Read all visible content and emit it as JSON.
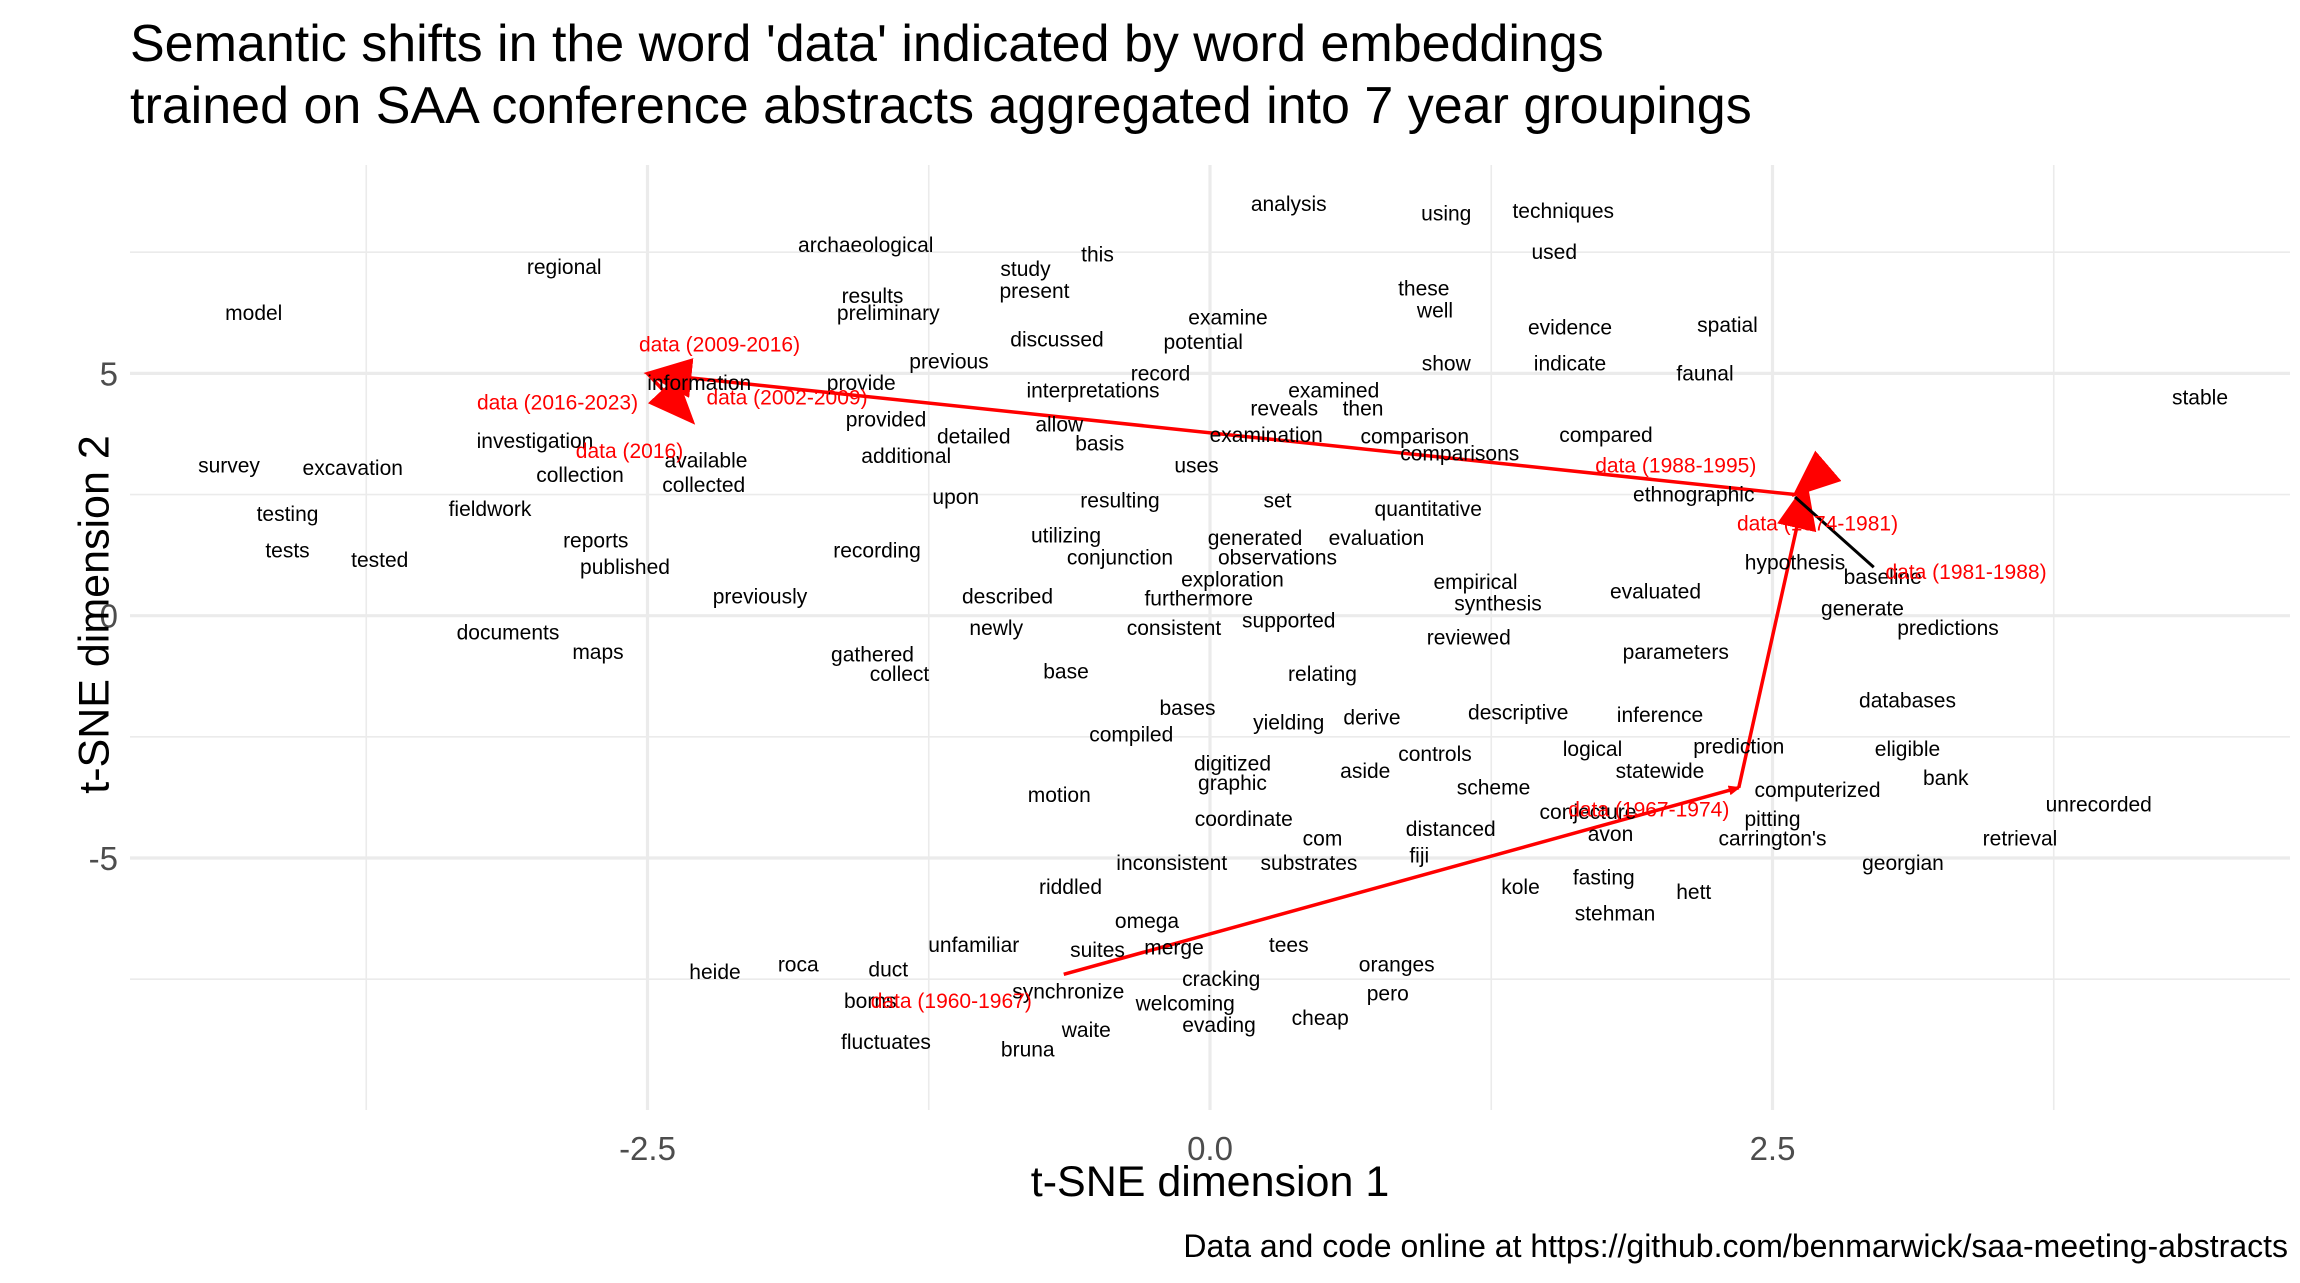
{
  "chart_data": {
    "type": "scatter",
    "title": "Semantic shifts in the word 'data' indicated by word embeddings",
    "subtitle": "trained on SAA conference abstracts aggregated into 7 year groupings",
    "xlabel": "t-SNE dimension 1",
    "ylabel": "t-SNE dimension 2",
    "caption": "Data and code online at https://github.com/benmarwick/saa-meeting-abstracts",
    "xlim": [
      -4.8,
      4.8
    ],
    "ylim": [
      -10.2,
      9.3
    ],
    "xticks": [
      -2.5,
      0.0,
      2.5
    ],
    "xtick_labels": [
      "-2.5",
      "0.0",
      "2.5"
    ],
    "yticks": [
      -5,
      0,
      5
    ],
    "ytick_labels": [
      "-5",
      "0",
      "5"
    ],
    "grid": true,
    "colors": {
      "words": "#000000",
      "data_points": "#ff0000",
      "arrows": "#ff0000",
      "short_arrow": "#000000",
      "grid": "#ebebeb"
    },
    "words": [
      {
        "label": "analysis",
        "x": 0.35,
        "y": 8.5
      },
      {
        "label": "using",
        "x": 1.05,
        "y": 8.3
      },
      {
        "label": "techniques",
        "x": 1.57,
        "y": 8.35
      },
      {
        "label": "archaeological",
        "x": -1.53,
        "y": 7.65
      },
      {
        "label": "this",
        "x": -0.5,
        "y": 7.45
      },
      {
        "label": "used",
        "x": 1.53,
        "y": 7.5
      },
      {
        "label": "regional",
        "x": -2.87,
        "y": 7.2
      },
      {
        "label": "study",
        "x": -0.82,
        "y": 7.15
      },
      {
        "label": "present",
        "x": -0.78,
        "y": 6.7
      },
      {
        "label": "these",
        "x": 0.95,
        "y": 6.75
      },
      {
        "label": "results",
        "x": -1.5,
        "y": 6.6
      },
      {
        "label": "well",
        "x": 1.0,
        "y": 6.3
      },
      {
        "label": "model",
        "x": -4.25,
        "y": 6.25
      },
      {
        "label": "preliminary",
        "x": -1.43,
        "y": 6.25
      },
      {
        "label": "examine",
        "x": 0.08,
        "y": 6.15
      },
      {
        "label": "evidence",
        "x": 1.6,
        "y": 5.95
      },
      {
        "label": "spatial",
        "x": 2.3,
        "y": 6.0
      },
      {
        "label": "discussed",
        "x": -0.68,
        "y": 5.7
      },
      {
        "label": "potential",
        "x": -0.03,
        "y": 5.65
      },
      {
        "label": "previous",
        "x": -1.16,
        "y": 5.25
      },
      {
        "label": "show",
        "x": 1.05,
        "y": 5.2
      },
      {
        "label": "indicate",
        "x": 1.6,
        "y": 5.2
      },
      {
        "label": "provide",
        "x": -1.55,
        "y": 4.8
      },
      {
        "label": "record",
        "x": -0.22,
        "y": 5.0
      },
      {
        "label": "faunal",
        "x": 2.2,
        "y": 5.0
      },
      {
        "label": "interpretations",
        "x": -0.52,
        "y": 4.65
      },
      {
        "label": "examined",
        "x": 0.55,
        "y": 4.65
      },
      {
        "label": "stable",
        "x": 4.4,
        "y": 4.5
      },
      {
        "label": "information",
        "x": -2.27,
        "y": 4.8
      },
      {
        "label": "reveals",
        "x": 0.33,
        "y": 4.28
      },
      {
        "label": "then",
        "x": 0.68,
        "y": 4.28
      },
      {
        "label": "provided",
        "x": -1.44,
        "y": 4.05
      },
      {
        "label": "allow",
        "x": -0.67,
        "y": 3.95
      },
      {
        "label": "detailed",
        "x": -1.05,
        "y": 3.7
      },
      {
        "label": "examination",
        "x": 0.25,
        "y": 3.73
      },
      {
        "label": "comparison",
        "x": 0.91,
        "y": 3.7
      },
      {
        "label": "compared",
        "x": 1.76,
        "y": 3.73
      },
      {
        "label": "basis",
        "x": -0.49,
        "y": 3.55
      },
      {
        "label": "comparisons",
        "x": 1.11,
        "y": 3.35
      },
      {
        "label": "investigation",
        "x": -3.0,
        "y": 3.6
      },
      {
        "label": "available",
        "x": -2.24,
        "y": 3.2
      },
      {
        "label": "additional",
        "x": -1.35,
        "y": 3.3
      },
      {
        "label": "uses",
        "x": -0.06,
        "y": 3.1
      },
      {
        "label": "survey",
        "x": -4.36,
        "y": 3.1
      },
      {
        "label": "excavation",
        "x": -3.81,
        "y": 3.05
      },
      {
        "label": "collection",
        "x": -2.8,
        "y": 2.9
      },
      {
        "label": "collected",
        "x": -2.25,
        "y": 2.7
      },
      {
        "label": "upon",
        "x": -1.13,
        "y": 2.45
      },
      {
        "label": "resulting",
        "x": -0.4,
        "y": 2.38
      },
      {
        "label": "set",
        "x": 0.3,
        "y": 2.38
      },
      {
        "label": "ethnographic",
        "x": 2.15,
        "y": 2.5
      },
      {
        "label": "quantitative",
        "x": 0.97,
        "y": 2.2
      },
      {
        "label": "fieldwork",
        "x": -3.2,
        "y": 2.2
      },
      {
        "label": "testing",
        "x": -4.1,
        "y": 2.1
      },
      {
        "label": "utilizing",
        "x": -0.64,
        "y": 1.65
      },
      {
        "label": "generated",
        "x": 0.2,
        "y": 1.6
      },
      {
        "label": "evaluation",
        "x": 0.74,
        "y": 1.6
      },
      {
        "label": "reports",
        "x": -2.73,
        "y": 1.55
      },
      {
        "label": "recording",
        "x": -1.48,
        "y": 1.35
      },
      {
        "label": "tests",
        "x": -4.1,
        "y": 1.35
      },
      {
        "label": "conjunction",
        "x": -0.4,
        "y": 1.2
      },
      {
        "label": "observations",
        "x": 0.3,
        "y": 1.2
      },
      {
        "label": "tested",
        "x": -3.69,
        "y": 1.15
      },
      {
        "label": "published",
        "x": -2.6,
        "y": 1.0
      },
      {
        "label": "hypothesis",
        "x": 2.6,
        "y": 1.1
      },
      {
        "label": "baseline",
        "x": 2.99,
        "y": 0.8
      },
      {
        "label": "exploration",
        "x": 0.1,
        "y": 0.75
      },
      {
        "label": "empirical",
        "x": 1.18,
        "y": 0.7
      },
      {
        "label": "evaluated",
        "x": 1.98,
        "y": 0.5
      },
      {
        "label": "described",
        "x": -0.9,
        "y": 0.4
      },
      {
        "label": "furthermore",
        "x": -0.05,
        "y": 0.35
      },
      {
        "label": "previously",
        "x": -2.0,
        "y": 0.4
      },
      {
        "label": "synthesis",
        "x": 1.28,
        "y": 0.25
      },
      {
        "label": "generate",
        "x": 2.9,
        "y": 0.15
      },
      {
        "label": "supported",
        "x": 0.35,
        "y": -0.1
      },
      {
        "label": "consistent",
        "x": -0.16,
        "y": -0.25
      },
      {
        "label": "newly",
        "x": -0.95,
        "y": -0.25
      },
      {
        "label": "predictions",
        "x": 3.28,
        "y": -0.25
      },
      {
        "label": "documents",
        "x": -3.12,
        "y": -0.35
      },
      {
        "label": "reviewed",
        "x": 1.15,
        "y": -0.45
      },
      {
        "label": "maps",
        "x": -2.72,
        "y": -0.75
      },
      {
        "label": "parameters",
        "x": 2.07,
        "y": -0.75
      },
      {
        "label": "gathered",
        "x": -1.5,
        "y": -0.8
      },
      {
        "label": "collect",
        "x": -1.38,
        "y": -1.2
      },
      {
        "label": "base",
        "x": -0.64,
        "y": -1.15
      },
      {
        "label": "relating",
        "x": 0.5,
        "y": -1.2
      },
      {
        "label": "databases",
        "x": 3.1,
        "y": -1.75
      },
      {
        "label": "bases",
        "x": -0.1,
        "y": -1.9
      },
      {
        "label": "descriptive",
        "x": 1.37,
        "y": -2.0
      },
      {
        "label": "inference",
        "x": 2.0,
        "y": -2.05
      },
      {
        "label": "derive",
        "x": 0.72,
        "y": -2.1
      },
      {
        "label": "yielding",
        "x": 0.35,
        "y": -2.2
      },
      {
        "label": "compiled",
        "x": -0.35,
        "y": -2.45
      },
      {
        "label": "logical",
        "x": 1.7,
        "y": -2.75
      },
      {
        "label": "prediction",
        "x": 2.35,
        "y": -2.7
      },
      {
        "label": "eligible",
        "x": 3.1,
        "y": -2.75
      },
      {
        "label": "controls",
        "x": 1.0,
        "y": -2.85
      },
      {
        "label": "digitized",
        "x": 0.1,
        "y": -3.05
      },
      {
        "label": "statewide",
        "x": 2.0,
        "y": -3.2
      },
      {
        "label": "aside",
        "x": 0.69,
        "y": -3.2
      },
      {
        "label": "bank",
        "x": 3.27,
        "y": -3.35
      },
      {
        "label": "graphic",
        "x": 0.1,
        "y": -3.45
      },
      {
        "label": "scheme",
        "x": 1.26,
        "y": -3.55
      },
      {
        "label": "computerized",
        "x": 2.7,
        "y": -3.6
      },
      {
        "label": "motion",
        "x": -0.67,
        "y": -3.7
      },
      {
        "label": "conjecture",
        "x": 1.68,
        "y": -4.05
      },
      {
        "label": "unrecorded",
        "x": 3.95,
        "y": -3.9
      },
      {
        "label": "coordinate",
        "x": 0.15,
        "y": -4.2
      },
      {
        "label": "pitting",
        "x": 2.5,
        "y": -4.2
      },
      {
        "label": "distanced",
        "x": 1.07,
        "y": -4.4
      },
      {
        "label": "avon",
        "x": 1.78,
        "y": -4.5
      },
      {
        "label": "carrington's",
        "x": 2.5,
        "y": -4.6
      },
      {
        "label": "com",
        "x": 0.5,
        "y": -4.6
      },
      {
        "label": "retrieval",
        "x": 3.6,
        "y": -4.6
      },
      {
        "label": "fiji",
        "x": 0.93,
        "y": -4.95
      },
      {
        "label": "substrates",
        "x": 0.44,
        "y": -5.1
      },
      {
        "label": "inconsistent",
        "x": -0.17,
        "y": -5.1
      },
      {
        "label": "georgian",
        "x": 3.08,
        "y": -5.1
      },
      {
        "label": "fasting",
        "x": 1.75,
        "y": -5.4
      },
      {
        "label": "kole",
        "x": 1.38,
        "y": -5.6
      },
      {
        "label": "hett",
        "x": 2.15,
        "y": -5.7
      },
      {
        "label": "riddled",
        "x": -0.62,
        "y": -5.6
      },
      {
        "label": "stehman",
        "x": 1.8,
        "y": -6.15
      },
      {
        "label": "omega",
        "x": -0.28,
        "y": -6.3
      },
      {
        "label": "unfamiliar",
        "x": -1.05,
        "y": -6.8
      },
      {
        "label": "tees",
        "x": 0.35,
        "y": -6.8
      },
      {
        "label": "suites",
        "x": -0.5,
        "y": -6.9
      },
      {
        "label": "merge",
        "x": -0.16,
        "y": -6.85
      },
      {
        "label": "oranges",
        "x": 0.83,
        "y": -7.2
      },
      {
        "label": "roca",
        "x": -1.83,
        "y": -7.2
      },
      {
        "label": "duct",
        "x": -1.43,
        "y": -7.3
      },
      {
        "label": "heide",
        "x": -2.2,
        "y": -7.35
      },
      {
        "label": "cracking",
        "x": 0.05,
        "y": -7.5
      },
      {
        "label": "synchronize",
        "x": -0.63,
        "y": -7.75
      },
      {
        "label": "pero",
        "x": 0.79,
        "y": -7.8
      },
      {
        "label": "borns",
        "x": -1.51,
        "y": -7.95
      },
      {
        "label": "welcoming",
        "x": -0.11,
        "y": -8.0
      },
      {
        "label": "cheap",
        "x": 0.49,
        "y": -8.3
      },
      {
        "label": "evading",
        "x": 0.04,
        "y": -8.45
      },
      {
        "label": "waite",
        "x": -0.55,
        "y": -8.55
      },
      {
        "label": "fluctuates",
        "x": -1.44,
        "y": -8.8
      },
      {
        "label": "bruna",
        "x": -0.81,
        "y": -8.95
      }
    ],
    "data_labels": [
      {
        "label": "data (1960-1967)",
        "x": -1.15,
        "y": -7.95
      },
      {
        "label": "data (1967-1974)",
        "x": 1.95,
        "y": -4.0
      },
      {
        "label": "data (1974-1981)",
        "x": 2.7,
        "y": 1.9
      },
      {
        "label": "data (1981-1988)",
        "x": 3.36,
        "y": 0.9
      },
      {
        "label": "data (1988-1995)",
        "x": 2.07,
        "y": 3.1
      },
      {
        "label": "data (2002-2009)",
        "x": -1.88,
        "y": 4.5
      },
      {
        "label": "data (2009-2016)",
        "x": -2.18,
        "y": 5.6
      },
      {
        "label": "data (2016-2023)",
        "x": -2.9,
        "y": 4.4
      },
      {
        "label": "data (2016)",
        "x": -2.58,
        "y": 3.4
      }
    ],
    "trajectory": [
      {
        "x": -0.65,
        "y": -7.4
      },
      {
        "x": 2.35,
        "y": -3.55
      },
      {
        "x": 2.65,
        "y": 2.7
      },
      {
        "x": 2.6,
        "y": 2.5
      },
      {
        "x": -2.5,
        "y": 5.0
      },
      {
        "x": -2.3,
        "y": 4.0
      }
    ],
    "short_arrow": {
      "from": {
        "x": 2.95,
        "y": 1.0
      },
      "to": {
        "x": 2.6,
        "y": 2.45
      }
    }
  }
}
